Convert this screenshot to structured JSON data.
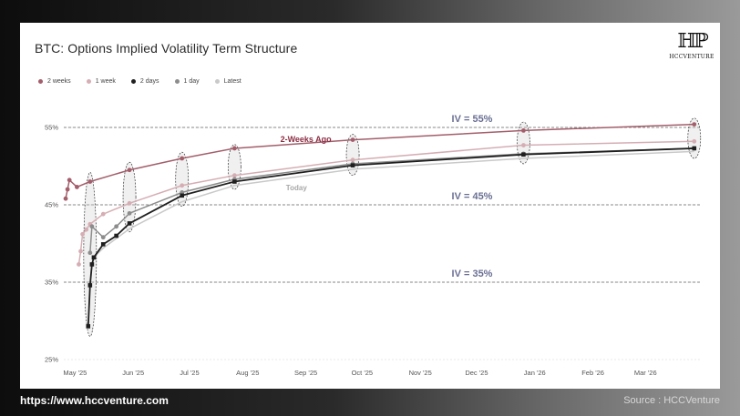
{
  "header": {
    "title": "BTC: Options Implied Volatility Term Structure"
  },
  "logo": {
    "mark": "HP",
    "text": "HCCVENTURE"
  },
  "footer": {
    "url": "https://www.hccventure.com",
    "source": "Source : HCCVenture"
  },
  "colors": {
    "two_weeks": "#a35e6b",
    "one_week": "#d5aeb4",
    "two_days": "#1f1f1f",
    "one_day": "#8c8c8c",
    "latest": "#c9c9c9",
    "iv_label": "#6a6f93",
    "annotation_2w": "#8a2d42",
    "annotation_today": "#a8a8a8"
  },
  "chart_data": {
    "type": "line",
    "title": "BTC: Options Implied Volatility Term Structure",
    "xlabel": "",
    "ylabel": "",
    "x_type": "date",
    "xlim": [
      "2025-04-25",
      "2026-03-31"
    ],
    "ylim": [
      25,
      57
    ],
    "y_ticks": [
      "55%",
      "45%",
      "35%",
      "25%"
    ],
    "y_tick_values": [
      55,
      45,
      35,
      25
    ],
    "x_ticks": [
      "May '25",
      "Jun '25",
      "Jul '25",
      "Aug '25",
      "Sep '25",
      "Oct '25",
      "Nov '25",
      "Dec '25",
      "Jan '26",
      "Feb '26",
      "Mar '26"
    ],
    "x_tick_dates": [
      "2025-05-01",
      "2025-06-01",
      "2025-07-01",
      "2025-08-01",
      "2025-09-01",
      "2025-10-01",
      "2025-11-01",
      "2025-12-01",
      "2026-01-01",
      "2026-02-01",
      "2026-03-01"
    ],
    "grid": "horizontal dashed",
    "legend_position": "top-left",
    "series": [
      {
        "name": "2 weeks",
        "color_key": "two_weeks",
        "marker": "circle",
        "points": [
          [
            "2025-04-26",
            45.8
          ],
          [
            "2025-04-27",
            47.0
          ],
          [
            "2025-04-28",
            48.2
          ],
          [
            "2025-05-02",
            47.3
          ],
          [
            "2025-05-09",
            48.0
          ],
          [
            "2025-05-30",
            49.5
          ],
          [
            "2025-06-27",
            51.0
          ],
          [
            "2025-07-25",
            52.3
          ],
          [
            "2025-09-26",
            53.4
          ],
          [
            "2025-12-26",
            54.6
          ],
          [
            "2026-03-27",
            55.4
          ]
        ]
      },
      {
        "name": "1 week",
        "color_key": "one_week",
        "marker": "circle",
        "points": [
          [
            "2025-05-03",
            37.3
          ],
          [
            "2025-05-04",
            39.0
          ],
          [
            "2025-05-05",
            41.2
          ],
          [
            "2025-05-07",
            41.8
          ],
          [
            "2025-05-09",
            42.5
          ],
          [
            "2025-05-16",
            43.8
          ],
          [
            "2025-05-30",
            45.2
          ],
          [
            "2025-06-27",
            47.5
          ],
          [
            "2025-07-25",
            48.8
          ],
          [
            "2025-09-26",
            50.8
          ],
          [
            "2025-12-26",
            52.7
          ],
          [
            "2026-03-27",
            53.2
          ]
        ]
      },
      {
        "name": "2 days",
        "color_key": "two_days",
        "marker": "square",
        "points": [
          [
            "2025-05-08",
            29.3
          ],
          [
            "2025-05-09",
            34.6
          ],
          [
            "2025-05-10",
            37.3
          ],
          [
            "2025-05-11",
            38.2
          ],
          [
            "2025-05-16",
            39.9
          ],
          [
            "2025-05-23",
            41.0
          ],
          [
            "2025-05-30",
            42.6
          ],
          [
            "2025-06-27",
            46.2
          ],
          [
            "2025-07-25",
            48.0
          ],
          [
            "2025-09-26",
            50.1
          ],
          [
            "2025-12-26",
            51.5
          ],
          [
            "2026-03-27",
            52.3
          ]
        ]
      },
      {
        "name": "1 day",
        "color_key": "one_day",
        "marker": "circle",
        "points": [
          [
            "2025-05-09",
            38.8
          ],
          [
            "2025-05-10",
            42.2
          ],
          [
            "2025-05-16",
            40.8
          ],
          [
            "2025-05-23",
            42.2
          ],
          [
            "2025-05-30",
            43.9
          ],
          [
            "2025-06-27",
            46.6
          ],
          [
            "2025-07-25",
            48.3
          ],
          [
            "2025-09-26",
            50.3
          ],
          [
            "2025-12-26",
            51.6
          ],
          [
            "2026-03-27",
            52.3
          ]
        ]
      },
      {
        "name": "Latest",
        "color_key": "latest",
        "marker": "none",
        "points": [
          [
            "2025-05-10",
            38.0
          ],
          [
            "2025-05-16",
            39.4
          ],
          [
            "2025-05-30",
            41.9
          ],
          [
            "2025-06-27",
            45.4
          ],
          [
            "2025-07-25",
            47.5
          ],
          [
            "2025-09-26",
            49.6
          ],
          [
            "2025-12-26",
            51.0
          ],
          [
            "2026-03-27",
            51.9
          ]
        ]
      }
    ],
    "reference_lines": [
      {
        "value": 55,
        "label": "IV = 55%"
      },
      {
        "value": 45,
        "label": "IV = 45%"
      },
      {
        "value": 35,
        "label": "IV = 35%"
      }
    ],
    "annotations": [
      {
        "text": "2-Weeks Ago",
        "date": "2025-09-01",
        "value": 53.1,
        "color_key": "annotation_2w"
      },
      {
        "text": "Today",
        "date": "2025-08-27",
        "value": 46.9,
        "color_key": "annotation_today"
      }
    ],
    "highlight_ellipses": [
      {
        "date": "2025-05-09",
        "low": 28.0,
        "high": 49.2
      },
      {
        "date": "2025-05-30",
        "low": 41.5,
        "high": 50.5
      },
      {
        "date": "2025-06-27",
        "low": 44.8,
        "high": 51.8
      },
      {
        "date": "2025-07-25",
        "low": 47.0,
        "high": 52.8
      },
      {
        "date": "2025-09-26",
        "low": 48.8,
        "high": 54.1
      },
      {
        "date": "2025-12-26",
        "low": 50.3,
        "high": 55.7
      },
      {
        "date": "2026-03-27",
        "low": 51.0,
        "high": 56.2
      }
    ]
  }
}
